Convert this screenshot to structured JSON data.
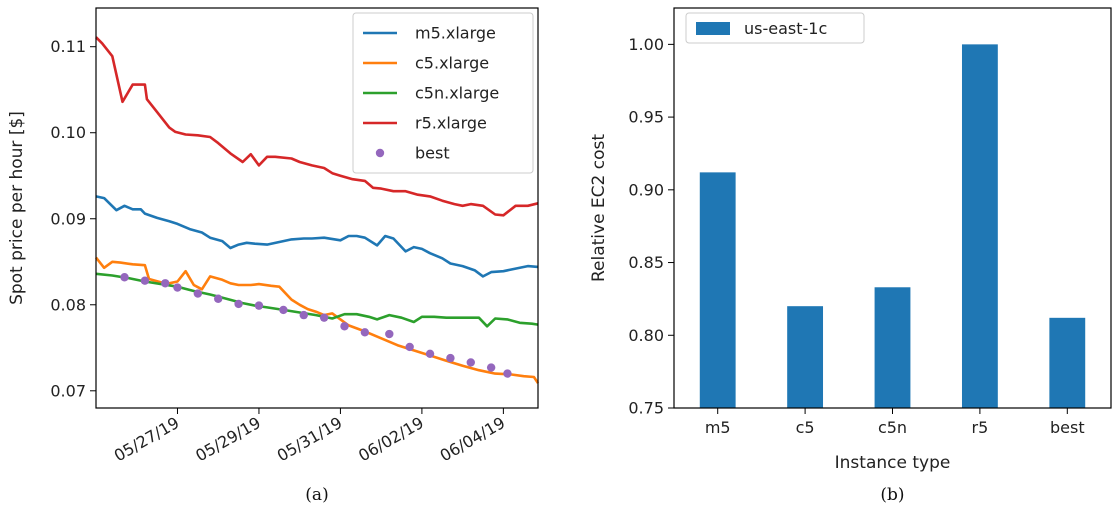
{
  "chart_data": [
    {
      "type": "line",
      "caption": "(a)",
      "ylabel": "Spot price per hour [$]",
      "xlabel": "",
      "xtick_labels": [
        "05/27/19",
        "05/29/19",
        "05/31/19",
        "06/02/19",
        "06/04/19"
      ],
      "xtick_values": [
        2,
        4,
        6,
        8,
        10
      ],
      "xlim": [
        0,
        10.85
      ],
      "ylim": [
        0.068,
        0.1145
      ],
      "yticks": [
        0.07,
        0.08,
        0.09,
        0.1,
        0.11
      ],
      "ytick_labels": [
        "0.07",
        "0.08",
        "0.09",
        "0.10",
        "0.11"
      ],
      "legend_position": "upper-right",
      "series": [
        {
          "name": "m5.xlarge",
          "style": "line",
          "color": "#1f77b4",
          "x": [
            0,
            0.2,
            0.5,
            0.7,
            0.9,
            1.1,
            1.2,
            1.5,
            1.8,
            2.0,
            2.3,
            2.6,
            2.8,
            3.1,
            3.3,
            3.5,
            3.7,
            3.9,
            4.2,
            4.5,
            4.8,
            5.1,
            5.3,
            5.6,
            6.0,
            6.2,
            6.4,
            6.6,
            6.9,
            7.1,
            7.3,
            7.6,
            7.8,
            8.0,
            8.2,
            8.5,
            8.7,
            9.0,
            9.3,
            9.5,
            9.7,
            10.0,
            10.3,
            10.6,
            10.85
          ],
          "y": [
            0.0926,
            0.0924,
            0.091,
            0.0915,
            0.0911,
            0.0911,
            0.0906,
            0.0901,
            0.0897,
            0.0894,
            0.0888,
            0.0884,
            0.0878,
            0.0874,
            0.0866,
            0.087,
            0.0872,
            0.0871,
            0.087,
            0.0873,
            0.0876,
            0.0877,
            0.0877,
            0.0878,
            0.0875,
            0.088,
            0.088,
            0.0878,
            0.0869,
            0.088,
            0.0877,
            0.0862,
            0.0867,
            0.0865,
            0.086,
            0.0854,
            0.0848,
            0.0845,
            0.084,
            0.0833,
            0.0838,
            0.0839,
            0.0842,
            0.0845,
            0.0844
          ]
        },
        {
          "name": "c5.xlarge",
          "style": "line",
          "color": "#ff7f0e",
          "x": [
            0,
            0.2,
            0.4,
            0.6,
            0.9,
            1.2,
            1.3,
            1.6,
            1.8,
            2.0,
            2.2,
            2.4,
            2.6,
            2.8,
            3.1,
            3.3,
            3.5,
            3.8,
            4.0,
            4.3,
            4.5,
            4.8,
            5.0,
            5.2,
            5.4,
            5.6,
            5.8,
            6.2,
            6.6,
            7.0,
            7.4,
            7.8,
            8.2,
            8.6,
            9.0,
            9.4,
            9.8,
            10.2,
            10.5,
            10.75,
            10.85
          ],
          "y": [
            0.0855,
            0.0843,
            0.085,
            0.0849,
            0.0847,
            0.0846,
            0.083,
            0.0826,
            0.0825,
            0.0827,
            0.0839,
            0.0823,
            0.0818,
            0.0833,
            0.0829,
            0.0825,
            0.0823,
            0.0823,
            0.0824,
            0.0822,
            0.0821,
            0.0806,
            0.08,
            0.0795,
            0.0792,
            0.0788,
            0.079,
            0.0776,
            0.0769,
            0.0761,
            0.0753,
            0.0747,
            0.0741,
            0.0735,
            0.0729,
            0.0724,
            0.072,
            0.0719,
            0.0717,
            0.0716,
            0.0709
          ]
        },
        {
          "name": "c5n.xlarge",
          "style": "line",
          "color": "#2ca02c",
          "x": [
            0,
            0.4,
            0.8,
            1.2,
            1.6,
            2.0,
            2.4,
            2.8,
            3.2,
            3.6,
            3.9,
            4.2,
            4.6,
            5.0,
            5.4,
            5.8,
            6.1,
            6.4,
            6.7,
            6.9,
            7.2,
            7.5,
            7.8,
            8.0,
            8.3,
            8.6,
            8.9,
            9.2,
            9.4,
            9.6,
            9.8,
            10.1,
            10.4,
            10.7,
            10.85
          ],
          "y": [
            0.0836,
            0.0834,
            0.0831,
            0.0827,
            0.0824,
            0.0821,
            0.0816,
            0.0812,
            0.0807,
            0.0802,
            0.0799,
            0.0797,
            0.0794,
            0.0791,
            0.0788,
            0.0784,
            0.0789,
            0.0789,
            0.0786,
            0.0783,
            0.0788,
            0.0785,
            0.078,
            0.0786,
            0.0786,
            0.0785,
            0.0785,
            0.0785,
            0.0785,
            0.0775,
            0.0784,
            0.0783,
            0.0779,
            0.0778,
            0.0777
          ]
        },
        {
          "name": "r5.xlarge",
          "style": "line",
          "color": "#d62728",
          "x": [
            0,
            0.15,
            0.4,
            0.65,
            0.9,
            1.05,
            1.2,
            1.25,
            1.5,
            1.8,
            1.95,
            2.2,
            2.5,
            2.8,
            3.0,
            3.3,
            3.6,
            3.8,
            4.0,
            4.2,
            4.4,
            4.8,
            5.0,
            5.3,
            5.6,
            5.8,
            6.0,
            6.3,
            6.6,
            6.8,
            7.0,
            7.3,
            7.6,
            7.9,
            8.2,
            8.5,
            8.8,
            9.0,
            9.2,
            9.5,
            9.8,
            10.0,
            10.3,
            10.6,
            10.85
          ],
          "y": [
            0.1111,
            0.1104,
            0.1089,
            0.1036,
            0.1056,
            0.1056,
            0.1056,
            0.1039,
            0.1024,
            0.1006,
            0.1001,
            0.0998,
            0.0997,
            0.0995,
            0.0988,
            0.0976,
            0.0966,
            0.0975,
            0.0962,
            0.0972,
            0.0972,
            0.097,
            0.0966,
            0.0962,
            0.0959,
            0.0953,
            0.095,
            0.0946,
            0.0944,
            0.0936,
            0.0935,
            0.0932,
            0.0932,
            0.0928,
            0.0926,
            0.0921,
            0.0917,
            0.0915,
            0.0917,
            0.0915,
            0.0905,
            0.0904,
            0.0915,
            0.0915,
            0.0918
          ]
        },
        {
          "name": "best",
          "style": "scatter",
          "color": "#9467bd",
          "x": [
            0.7,
            1.2,
            1.7,
            2.0,
            2.5,
            3.0,
            3.5,
            4.0,
            4.6,
            5.1,
            5.6,
            6.1,
            6.6,
            7.2,
            7.7,
            8.2,
            8.7,
            9.2,
            9.7,
            10.1
          ],
          "y": [
            0.0832,
            0.0828,
            0.0825,
            0.082,
            0.0813,
            0.0807,
            0.0801,
            0.0799,
            0.0794,
            0.0788,
            0.0785,
            0.0775,
            0.0768,
            0.0766,
            0.0751,
            0.0743,
            0.0738,
            0.0733,
            0.0727,
            0.072
          ]
        }
      ]
    },
    {
      "type": "bar",
      "caption": "(b)",
      "xlabel": "Instance type",
      "ylabel": "Relative EC2 cost",
      "categories": [
        "m5",
        "c5",
        "c5n",
        "r5",
        "best"
      ],
      "ylim": [
        0.75,
        1.025
      ],
      "yticks": [
        0.75,
        0.8,
        0.85,
        0.9,
        0.95,
        1.0
      ],
      "ytick_labels": [
        "0.75",
        "0.80",
        "0.85",
        "0.90",
        "0.95",
        "1.00"
      ],
      "legend_position": "upper-left",
      "series": [
        {
          "name": "us-east-1c",
          "color": "#1f77b4",
          "values": [
            0.912,
            0.82,
            0.833,
            1.0,
            0.812
          ]
        }
      ]
    }
  ]
}
